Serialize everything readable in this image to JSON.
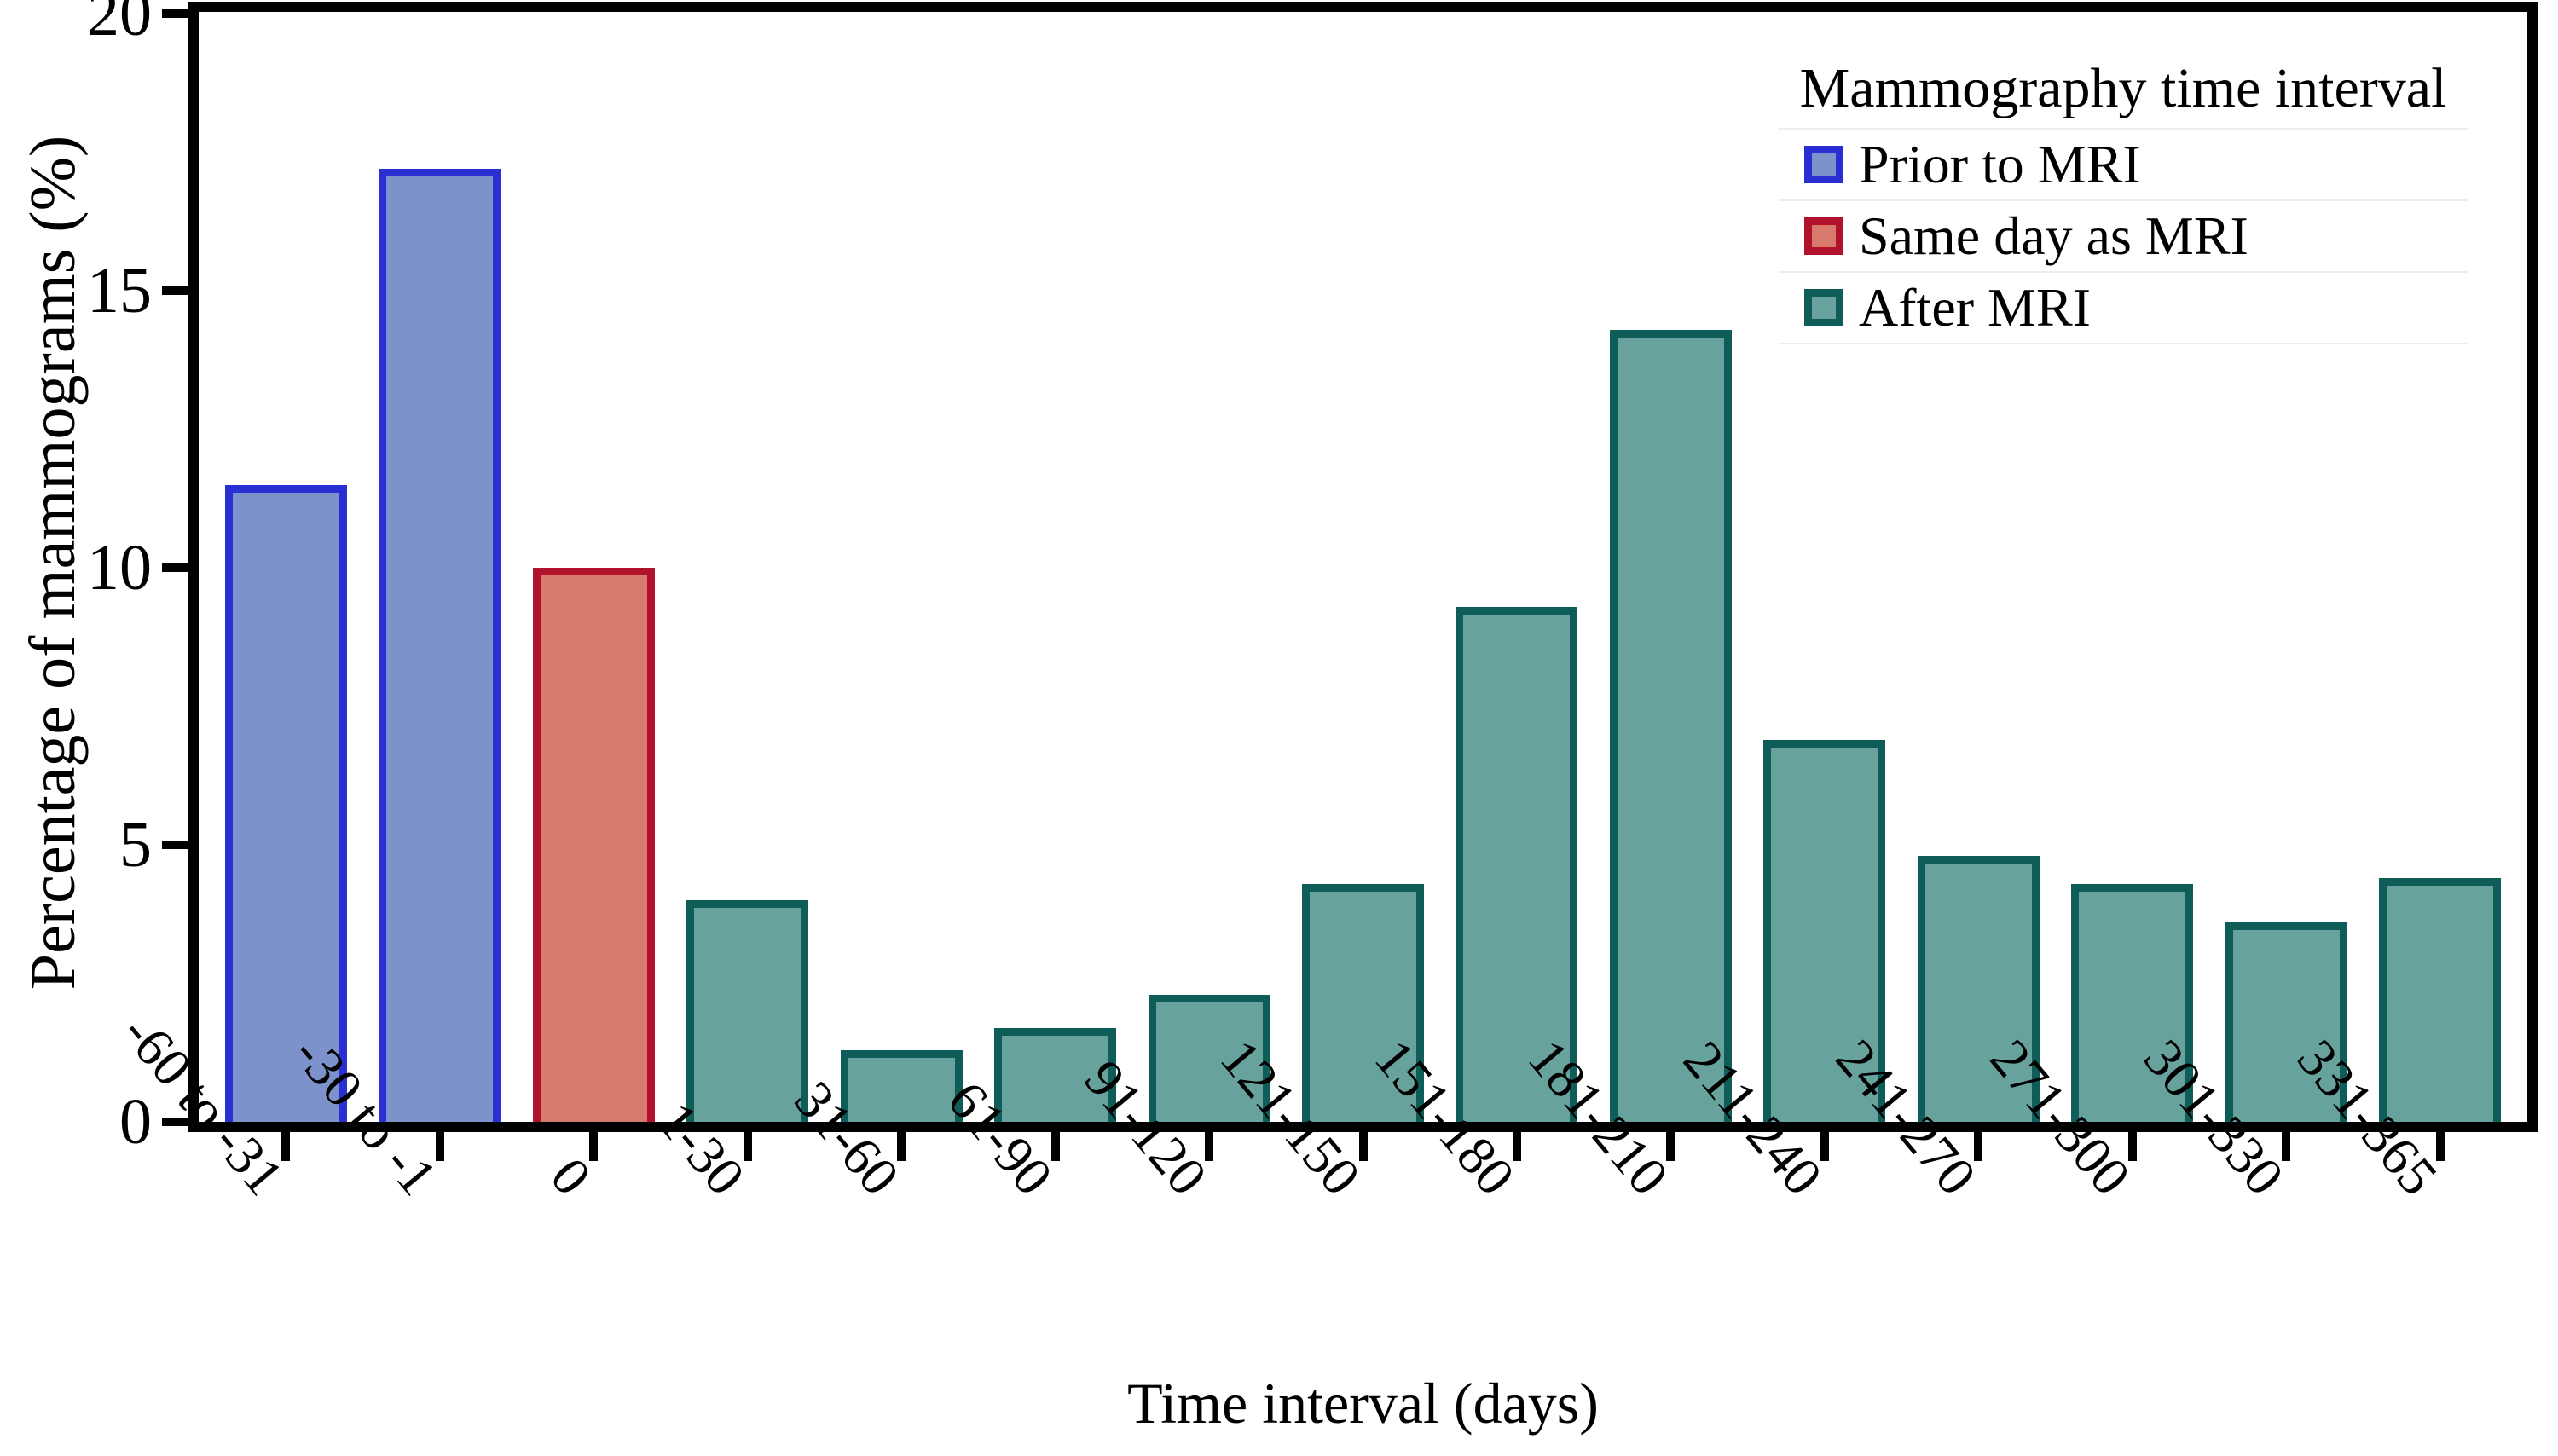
{
  "figure": {
    "y_axis": {
      "label": "Percentage of mammograms (%)",
      "ticks": [
        0,
        5,
        10,
        15,
        20
      ],
      "max": 20
    },
    "x_axis": {
      "label": "Time interval (days)"
    },
    "legend": {
      "title": "Mammography time interval",
      "entries": [
        {
          "label": "Prior to MRI",
          "key": "prior"
        },
        {
          "label": "Same day as MRI",
          "key": "same_day"
        },
        {
          "label": "After MRI",
          "key": "after"
        }
      ]
    },
    "colors": {
      "prior": {
        "fill": "#7d92cb",
        "edge": "#2a2fd4"
      },
      "same_day": {
        "fill": "#d87b6e",
        "edge": "#b0122c"
      },
      "after": {
        "fill": "#67a29d",
        "edge": "#0f5d59"
      }
    },
    "axis_color": "#000000",
    "background": "#ffffff"
  },
  "chart_data": {
    "type": "bar",
    "title": "",
    "xlabel": "Time interval (days)",
    "ylabel": "Percentage of mammograms (%)",
    "ylim": [
      0,
      20
    ],
    "yticks": [
      0,
      5,
      10,
      15,
      20
    ],
    "grid": false,
    "legend_position": "upper right",
    "legend_title": "Mammography time interval",
    "categories": [
      "-60 to -31",
      "-30 to -1",
      "0",
      "1-30",
      "31-60",
      "61-90",
      "91-120",
      "121-150",
      "151-180",
      "181-210",
      "211-240",
      "241-270",
      "271-300",
      "301-330",
      "331-365"
    ],
    "values": [
      11.5,
      17.2,
      10.0,
      4.0,
      1.3,
      1.7,
      2.3,
      4.3,
      9.3,
      14.3,
      6.9,
      4.8,
      4.3,
      3.6,
      4.4
    ],
    "groups": [
      "prior",
      "prior",
      "same_day",
      "after",
      "after",
      "after",
      "after",
      "after",
      "after",
      "after",
      "after",
      "after",
      "after",
      "after",
      "after"
    ],
    "series": [
      {
        "name": "Prior to MRI",
        "categories": [
          "-60 to -31",
          "-30 to -1"
        ],
        "values": [
          11.5,
          17.2
        ]
      },
      {
        "name": "Same day as MRI",
        "categories": [
          "0"
        ],
        "values": [
          10.0
        ]
      },
      {
        "name": "After MRI",
        "categories": [
          "1-30",
          "31-60",
          "61-90",
          "91-120",
          "121-150",
          "151-180",
          "181-210",
          "211-240",
          "241-270",
          "271-300",
          "301-330",
          "331-365"
        ],
        "values": [
          4.0,
          1.3,
          1.7,
          2.3,
          4.3,
          9.3,
          14.3,
          6.9,
          4.8,
          4.3,
          3.6,
          4.4
        ]
      }
    ]
  }
}
